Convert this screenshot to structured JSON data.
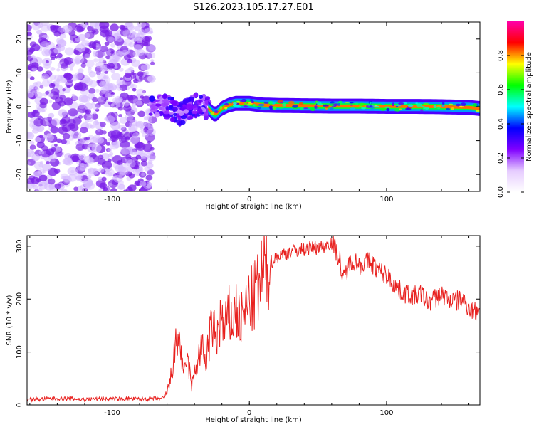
{
  "title": "S126.2023.105.17.27.E01",
  "chart_data": [
    {
      "type": "heatmap",
      "xlabel": "Height of straight line (km)",
      "ylabel": "Frequency (Hz)",
      "xlim": [
        -162,
        168
      ],
      "ylim": [
        -25,
        25
      ],
      "xticks": [
        -100,
        0,
        100
      ],
      "yticks": [
        -20,
        -10,
        0,
        10,
        20
      ],
      "colorbar": {
        "label": "Normalized spectral amplitude",
        "range": [
          0,
          1
        ],
        "ticks": [
          "0.0",
          "0.2",
          "0.4",
          "0.6",
          "0.8"
        ],
        "colors": [
          "#ffffff",
          "#e6ccff",
          "#8000ff",
          "#0000ff",
          "#00ffff",
          "#00ff00",
          "#ffff00",
          "#ff0000",
          "#ff00aa"
        ]
      },
      "regions": [
        {
          "name": "noise",
          "x_range": [
            -162,
            -70
          ],
          "y_range": [
            -25,
            25
          ],
          "amplitude": [
            0.02,
            0.15
          ]
        },
        {
          "name": "onset",
          "x_range": [
            -72,
            -30
          ],
          "y_range": [
            -4,
            4
          ],
          "amplitude": [
            0.15,
            0.35
          ]
        },
        {
          "name": "tone",
          "x_range": [
            -30,
            168
          ],
          "y_range": [
            -1.5,
            1.5
          ],
          "amplitude": [
            0.3,
            0.9
          ]
        }
      ],
      "ridge": {
        "x": [
          -72,
          -65,
          -60,
          -55,
          -50,
          -45,
          -40,
          -35,
          -30,
          -25,
          -20,
          -15,
          -10,
          -5,
          0,
          10,
          20,
          40,
          60,
          80,
          100,
          120,
          140,
          160,
          168
        ],
        "y": [
          -1.0,
          0.5,
          0.0,
          -1.0,
          -2.0,
          -0.5,
          0.5,
          1.0,
          -0.5,
          -2.5,
          -0.5,
          0.5,
          1.0,
          1.0,
          1.0,
          0.5,
          0.4,
          0.3,
          0.2,
          0.2,
          0.1,
          0.1,
          0.0,
          -0.2,
          -0.5
        ]
      }
    },
    {
      "type": "line",
      "xlabel": "Height of straight line (km)",
      "ylabel": "SNR (10 * v/v)",
      "xlim": [
        -162,
        168
      ],
      "ylim": [
        0,
        320
      ],
      "xticks": [
        -100,
        0,
        100
      ],
      "yticks": [
        0,
        100,
        200,
        300
      ],
      "color": "#e8201e",
      "series": [
        {
          "x": [
            -162,
            -150,
            -140,
            -130,
            -120,
            -110,
            -100,
            -90,
            -80,
            -70,
            -62,
            -58,
            -55,
            -52,
            -50,
            -48,
            -46,
            -44,
            -42,
            -40,
            -38,
            -35,
            -32,
            -30,
            -27,
            -24,
            -21,
            -18,
            -15,
            -12,
            -10,
            -8,
            -5,
            -3,
            0,
            2,
            4,
            6,
            8,
            10,
            13,
            16,
            20,
            25,
            30,
            35,
            40,
            45,
            50,
            55,
            60,
            63,
            66,
            68,
            70,
            75,
            80,
            85,
            88,
            92,
            96,
            100,
            105,
            110,
            115,
            120,
            125,
            130,
            135,
            140,
            145,
            150,
            155,
            160,
            165,
            168
          ],
          "y": [
            10,
            11,
            12,
            12,
            10,
            12,
            11,
            12,
            11,
            12,
            12,
            40,
            90,
            130,
            110,
            45,
            90,
            70,
            35,
            60,
            80,
            110,
            80,
            110,
            150,
            120,
            165,
            140,
            170,
            155,
            185,
            160,
            160,
            175,
            200,
            195,
            210,
            215,
            230,
            250,
            260,
            270,
            280,
            285,
            290,
            292,
            294,
            296,
            298,
            300,
            310,
            292,
            275,
            230,
            250,
            275,
            265,
            268,
            272,
            260,
            250,
            245,
            230,
            215,
            210,
            205,
            210,
            195,
            200,
            210,
            200,
            195,
            200,
            185,
            175,
            190
          ]
        }
      ]
    }
  ]
}
